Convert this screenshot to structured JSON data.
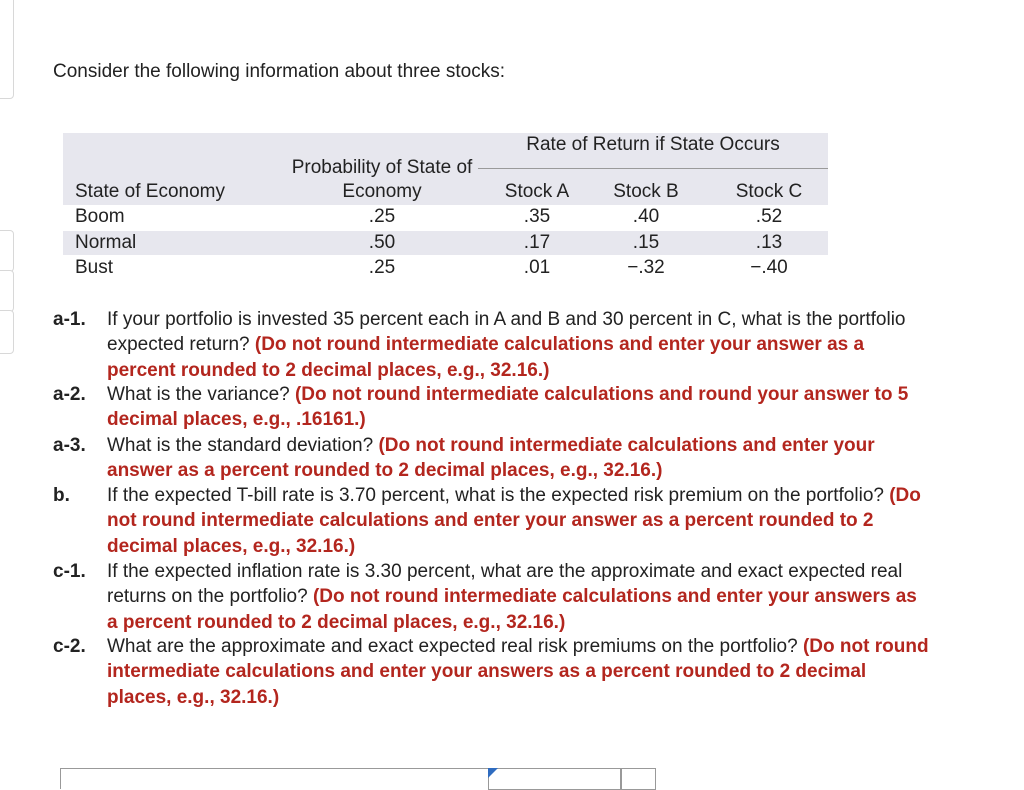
{
  "intro": "Consider the following information about three stocks:",
  "table": {
    "spanner": "Rate of Return if State Occurs",
    "headers": [
      "State of Economy",
      "Probability of State of Economy",
      "Stock A",
      "Stock B",
      "Stock C"
    ],
    "rows": [
      [
        "Boom",
        ".25",
        ".35",
        ".40",
        ".52"
      ],
      [
        "Normal",
        ".50",
        ".17",
        ".15",
        ".13"
      ],
      [
        "Bust",
        ".25",
        ".01",
        "−.32",
        "−.40"
      ]
    ]
  },
  "questions": [
    {
      "label": "a-1.",
      "text": "If your portfolio is invested 35 percent each in A and B and 30 percent in C, what is the portfolio expected return?",
      "note": "(Do not round intermediate calculations and enter your answer as a percent rounded to 2 decimal places, e.g., 32.16.)"
    },
    {
      "label": "a-2.",
      "text": "What is the variance?",
      "note": "(Do not round intermediate calculations and round your answer to 5 decimal places, e.g., .16161.)"
    },
    {
      "label": "a-3.",
      "text": "What is the standard deviation?",
      "note": "(Do not round intermediate calculations and enter your answer as a percent rounded to 2 decimal places, e.g., 32.16.)"
    },
    {
      "label": "b.",
      "text": "If the expected T-bill rate is 3.70 percent, what is the expected risk premium on the portfolio?",
      "note": "(Do not round intermediate calculations and enter your answer as a percent rounded to 2 decimal places, e.g., 32.16.)"
    },
    {
      "label": "c-1.",
      "text": "If the expected inflation rate is 3.30 percent, what are the approximate and exact expected real returns on the portfolio?",
      "note": "(Do not round intermediate calculations and enter your answers as a percent rounded to 2 decimal places, e.g., 32.16.)"
    },
    {
      "label": "c-2.",
      "text": "What are the approximate and exact expected real risk premiums on the portfolio?",
      "note": "(Do not round intermediate calculations and enter your answers as a percent rounded to 2 decimal places, e.g., 32.16.)"
    }
  ]
}
